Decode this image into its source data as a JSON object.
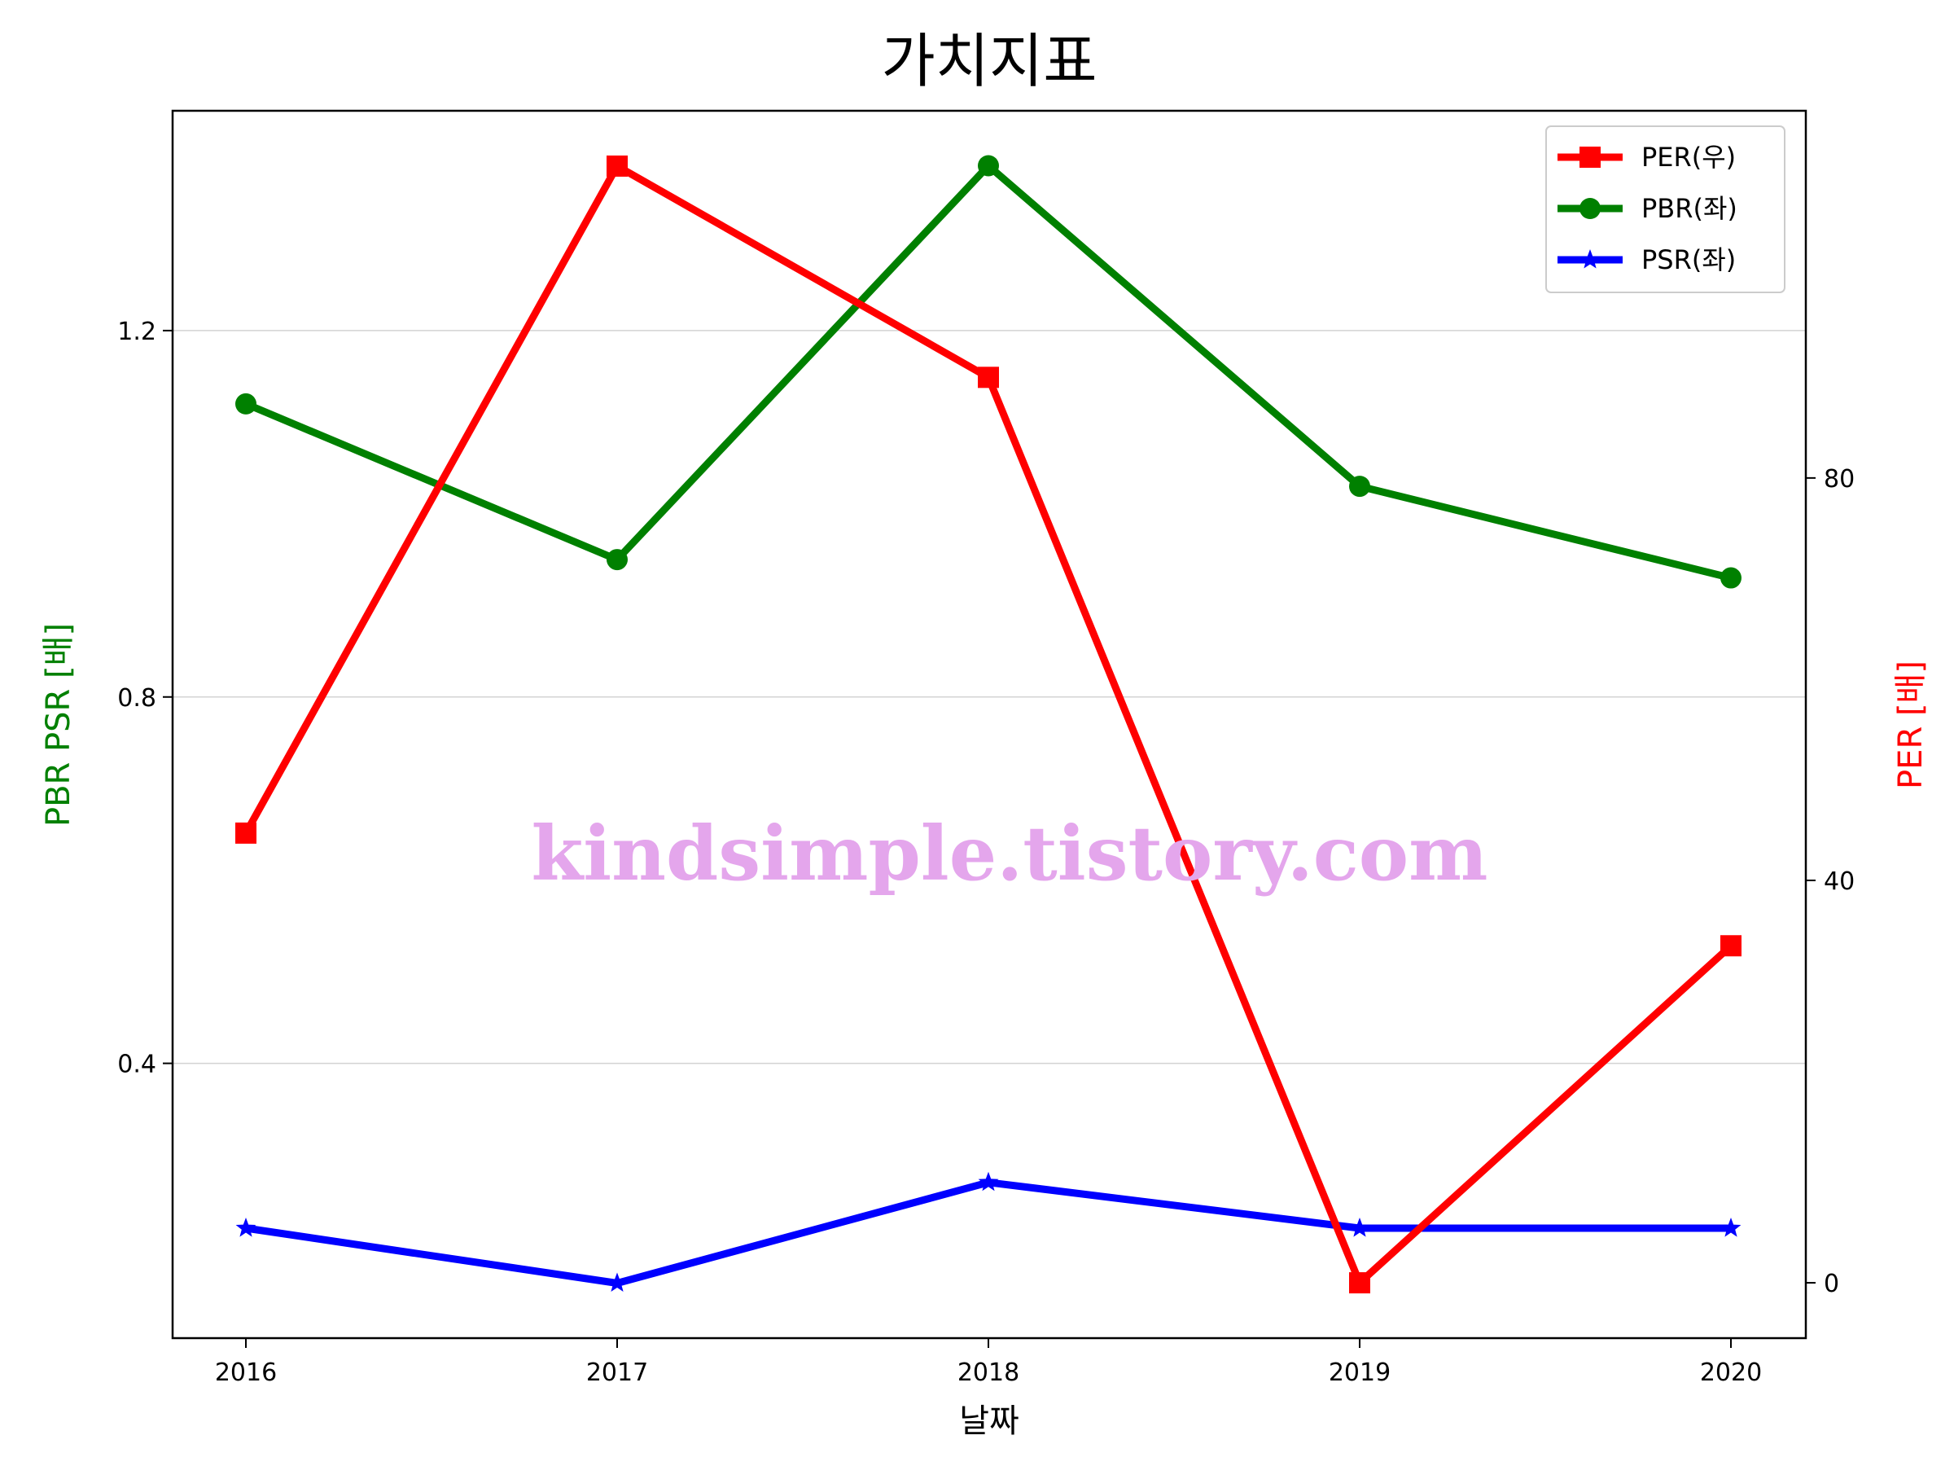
{
  "chart_data": {
    "type": "line",
    "title": "가치지표",
    "xlabel": "날짜",
    "ylabel_left": "PBR PSR [배]",
    "ylabel_right": "PER [배]",
    "categories": [
      "2016",
      "2017",
      "2018",
      "2019",
      "2020"
    ],
    "left_axis": {
      "ylim": [
        0.1,
        1.44
      ],
      "ticks": [
        0.4,
        0.8,
        1.2
      ],
      "tick_labels": [
        "0.4",
        "0.8",
        "1.2"
      ],
      "grid": true
    },
    "right_axis": {
      "ylim": [
        -5.5,
        116.5
      ],
      "ticks": [
        0,
        40,
        80
      ],
      "tick_labels": [
        "0",
        "40",
        "80"
      ]
    },
    "series": [
      {
        "name": "PER(우)",
        "axis": "right",
        "color": "#ff0000",
        "marker": "square",
        "values": [
          44.7,
          111.0,
          90.0,
          0.0,
          33.5
        ]
      },
      {
        "name": "PBR(좌)",
        "axis": "left",
        "color": "#008000",
        "marker": "circle",
        "values": [
          1.12,
          0.95,
          1.38,
          1.03,
          0.93
        ]
      },
      {
        "name": "PSR(좌)",
        "axis": "left",
        "color": "#0000ff",
        "marker": "star",
        "values": [
          0.22,
          0.16,
          0.27,
          0.22,
          0.22
        ]
      }
    ],
    "legend_position": "top-right",
    "watermark": "kindsimple.tistory.com"
  }
}
